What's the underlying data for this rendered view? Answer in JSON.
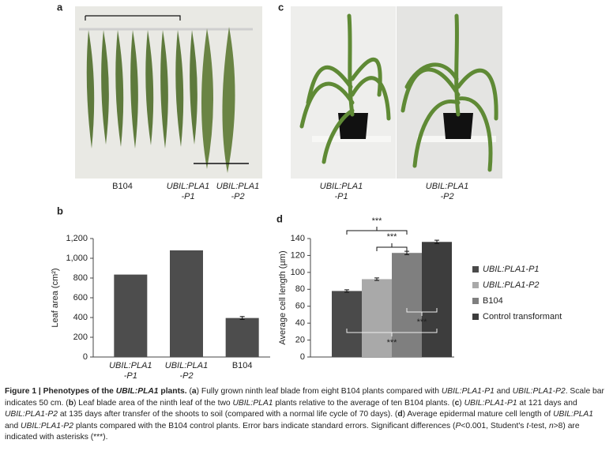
{
  "photos": [
    {
      "label": "a",
      "labels": [
        "B104",
        "UBIL:PLA1\n-P1",
        "UBIL:PLA1\n-P2"
      ]
    },
    {
      "label": "c",
      "labels": [
        "UBIL:PLA1\n-P1",
        "UBIL:PLA1\n-P2"
      ]
    }
  ],
  "chart_data": [
    {
      "type": "bar",
      "label": "b",
      "y_label": "Leaf area (cm²)",
      "categories": [
        "UBIL:PLA1\n-P1",
        "UBIL:PLA1\n-P2",
        "B104"
      ],
      "values": [
        835,
        1080,
        395
      ],
      "errors": [
        null,
        null,
        15
      ],
      "color": "#4d4d4d",
      "ylim": [
        0,
        1200
      ],
      "yticks": [
        0,
        200,
        400,
        600,
        800,
        {
          "value": 1000,
          "label": "1,000"
        },
        {
          "value": 1200,
          "label": "1,200"
        }
      ]
    },
    {
      "type": "grouped_bar",
      "label": "d",
      "y_label": "Average cell length (µm)",
      "series": [
        {
          "name": "UBIL:PLA1-P1",
          "color": "#4a4a4a",
          "values": [
            78
          ],
          "errors": [
            1.5
          ]
        },
        {
          "name": "UBIL:PLA1-P2",
          "color": "#a9a9a9",
          "values": [
            92
          ],
          "errors": [
            1.5
          ]
        },
        {
          "name": "B104",
          "color": "#7f7f7f",
          "values": [
            123
          ],
          "errors": [
            2
          ]
        },
        {
          "name": "Control transformant",
          "color": "#3d3d3d",
          "values": [
            136
          ],
          "errors": [
            2
          ]
        }
      ],
      "ylim": [
        0,
        140
      ],
      "yticks": [
        0,
        20,
        40,
        60,
        80,
        100,
        120,
        140
      ],
      "annotations": [
        "***",
        "***",
        "***",
        "***"
      ]
    }
  ],
  "caption": [
    "Figure 1 | Phenotypes of the ",
    "UBIL:PLA1",
    " plants.",
    " (",
    "a",
    ") Fully grown ninth leaf blade from eight B104 plants compared with ",
    "UBIL:PLA1-P1",
    " and ",
    "UBIL:PLA1-P2",
    ". Scale bar indicates 50 cm. (",
    "b",
    ") Leaf blade area of the ninth leaf of the two ",
    "UBIL:PLA1",
    " plants relative to the average of ten B104 plants. (",
    "c",
    ") ",
    "UBIL:PLA1-P1",
    " at 121 days and ",
    "UBIL:PLA1-P2",
    " at 135 days after transfer of the shoots to soil (compared with a normal life cycle of 70 days). (",
    "d",
    ") Average epidermal mature cell length of ",
    "UBIL:PLA1",
    " and ",
    "UBIL:PLA1-P2",
    " plants compared with the B104 control plants. Error bars indicate standard errors. Significant differences (",
    "P",
    "<0.001, Student's ",
    "t",
    "-test, ",
    "n",
    ">8) are indicated with asterisks (***)."
  ]
}
